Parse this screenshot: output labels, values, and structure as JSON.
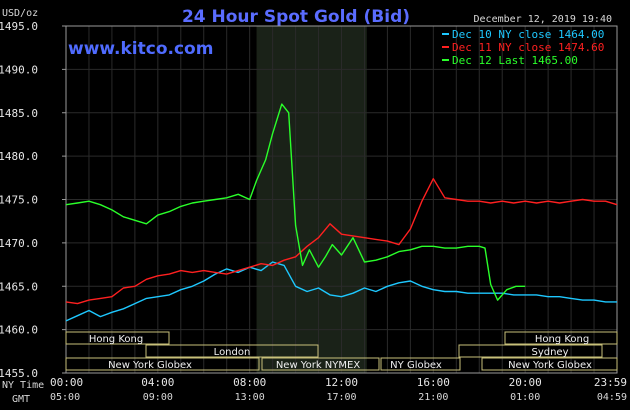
{
  "header": {
    "title": "24 Hour Spot Gold (Bid)",
    "unit": "USD/oz",
    "url": "www.kitco.com",
    "timestamp": "December 12, 2019 19:40"
  },
  "colors": {
    "background": "#000000",
    "grid": "#2a2a2a",
    "highlight": "#1a2218",
    "dec10": "#1ec8ff",
    "dec11": "#ff2020",
    "dec12": "#2aff2a"
  },
  "legend": [
    {
      "label": "Dec 10 NY close 1464.00",
      "color": "#1ec8ff"
    },
    {
      "label": "Dec 11 NY close 1474.60",
      "color": "#ff2020"
    },
    {
      "label": "Dec 12 Last 1465.00",
      "color": "#2aff2a"
    }
  ],
  "time_rows": {
    "ny_label": "NY Time",
    "gmt_label": "GMT",
    "ny": [
      "00:00",
      "04:00",
      "08:00",
      "12:00",
      "16:00",
      "20:00",
      "23:59"
    ],
    "gmt": [
      "05:00",
      "09:00",
      "13:00",
      "17:00",
      "21:00",
      "01:00",
      "04:59"
    ]
  },
  "sessions": {
    "row1": [
      "Hong Kong",
      "Hong Kong"
    ],
    "row2": [
      "London",
      "Sydney"
    ],
    "row3": [
      "New York Globex",
      "New York NYMEX",
      "NY Globex",
      "New York Globex"
    ]
  },
  "chart_data": {
    "type": "line",
    "title": "24 Hour Spot Gold (Bid)",
    "ylabel": "USD/oz",
    "ylim": [
      1455.0,
      1495.0
    ],
    "yticks": [
      "1495.0",
      "1490.0",
      "1485.0",
      "1480.0",
      "1475.0",
      "1470.0",
      "1465.0",
      "1460.0",
      "1455.0"
    ],
    "xlim": [
      0,
      24
    ],
    "grid": true,
    "legend_position": "top-right",
    "highlight_hours": [
      8.3,
      13.1
    ],
    "series": [
      {
        "name": "Dec 10 NY close 1464.00",
        "color": "#1ec8ff",
        "x": [
          0,
          0.5,
          1,
          1.5,
          2,
          2.5,
          3,
          3.5,
          4,
          4.5,
          5,
          5.5,
          6,
          6.5,
          7,
          7.5,
          8,
          8.5,
          9,
          9.5,
          10,
          10.5,
          11,
          11.5,
          12,
          12.5,
          13,
          13.5,
          14,
          14.5,
          15,
          15.5,
          16,
          16.5,
          17,
          17.5,
          18,
          18.5,
          19,
          19.5,
          20,
          20.5,
          21,
          21.5,
          22,
          22.5,
          23,
          23.5,
          24
        ],
        "y": [
          1461.0,
          1461.6,
          1462.2,
          1461.5,
          1462.0,
          1462.4,
          1463.0,
          1463.6,
          1463.8,
          1464.0,
          1464.6,
          1465.0,
          1465.6,
          1466.4,
          1467.0,
          1466.6,
          1467.2,
          1466.8,
          1467.8,
          1467.4,
          1465.0,
          1464.4,
          1464.8,
          1464.0,
          1463.8,
          1464.2,
          1464.8,
          1464.4,
          1465.0,
          1465.4,
          1465.6,
          1465.0,
          1464.6,
          1464.4,
          1464.4,
          1464.2,
          1464.2,
          1464.2,
          1464.2,
          1464.0,
          1464.0,
          1464.0,
          1463.8,
          1463.8,
          1463.6,
          1463.4,
          1463.4,
          1463.2,
          1463.2
        ]
      },
      {
        "name": "Dec 11 NY close 1474.60",
        "color": "#ff2020",
        "x": [
          0,
          0.5,
          1,
          1.5,
          2,
          2.5,
          3,
          3.5,
          4,
          4.5,
          5,
          5.5,
          6,
          6.5,
          7,
          7.5,
          8,
          8.5,
          9,
          9.5,
          10,
          10.5,
          11,
          11.5,
          12,
          12.5,
          13,
          13.5,
          14,
          14.5,
          15,
          15.5,
          16,
          16.5,
          17,
          17.5,
          18,
          18.5,
          19,
          19.5,
          20,
          20.5,
          21,
          21.5,
          22,
          22.5,
          23,
          23.5,
          24
        ],
        "y": [
          1463.2,
          1463.0,
          1463.4,
          1463.6,
          1463.8,
          1464.8,
          1465.0,
          1465.8,
          1466.2,
          1466.4,
          1466.8,
          1466.6,
          1466.8,
          1466.6,
          1466.4,
          1466.8,
          1467.2,
          1467.6,
          1467.4,
          1468.0,
          1468.4,
          1469.6,
          1470.6,
          1472.2,
          1471.0,
          1470.8,
          1470.6,
          1470.4,
          1470.2,
          1469.8,
          1471.6,
          1474.8,
          1477.4,
          1475.2,
          1475.0,
          1474.8,
          1474.8,
          1474.6,
          1474.8,
          1474.6,
          1474.8,
          1474.6,
          1474.8,
          1474.6,
          1474.8,
          1475.0,
          1474.8,
          1474.8,
          1474.4
        ]
      },
      {
        "name": "Dec 12 Last 1465.00",
        "color": "#2aff2a",
        "x": [
          0,
          0.5,
          1,
          1.5,
          2,
          2.5,
          3,
          3.5,
          4,
          4.5,
          5,
          5.5,
          6,
          6.5,
          7,
          7.5,
          8,
          8.3,
          8.7,
          9.0,
          9.4,
          9.7,
          10.0,
          10.3,
          10.6,
          11.0,
          11.3,
          11.6,
          12.0,
          12.5,
          13.0,
          13.5,
          14.0,
          14.5,
          15.0,
          15.5,
          16.0,
          16.5,
          17.0,
          17.5,
          18.0,
          18.25,
          18.5,
          18.8,
          19.2,
          19.6,
          20.0
        ],
        "y": [
          1474.4,
          1474.6,
          1474.8,
          1474.4,
          1473.8,
          1473.0,
          1472.6,
          1472.2,
          1473.2,
          1473.6,
          1474.2,
          1474.6,
          1474.8,
          1475.0,
          1475.2,
          1475.6,
          1475.0,
          1477.2,
          1479.6,
          1482.6,
          1486.0,
          1485.0,
          1472.0,
          1467.4,
          1469.2,
          1467.2,
          1468.4,
          1469.8,
          1468.6,
          1470.6,
          1467.8,
          1468.0,
          1468.4,
          1469.0,
          1469.2,
          1469.6,
          1469.6,
          1469.4,
          1469.4,
          1469.6,
          1469.6,
          1469.4,
          1465.2,
          1463.4,
          1464.6,
          1465.0,
          1465.0
        ]
      }
    ]
  }
}
